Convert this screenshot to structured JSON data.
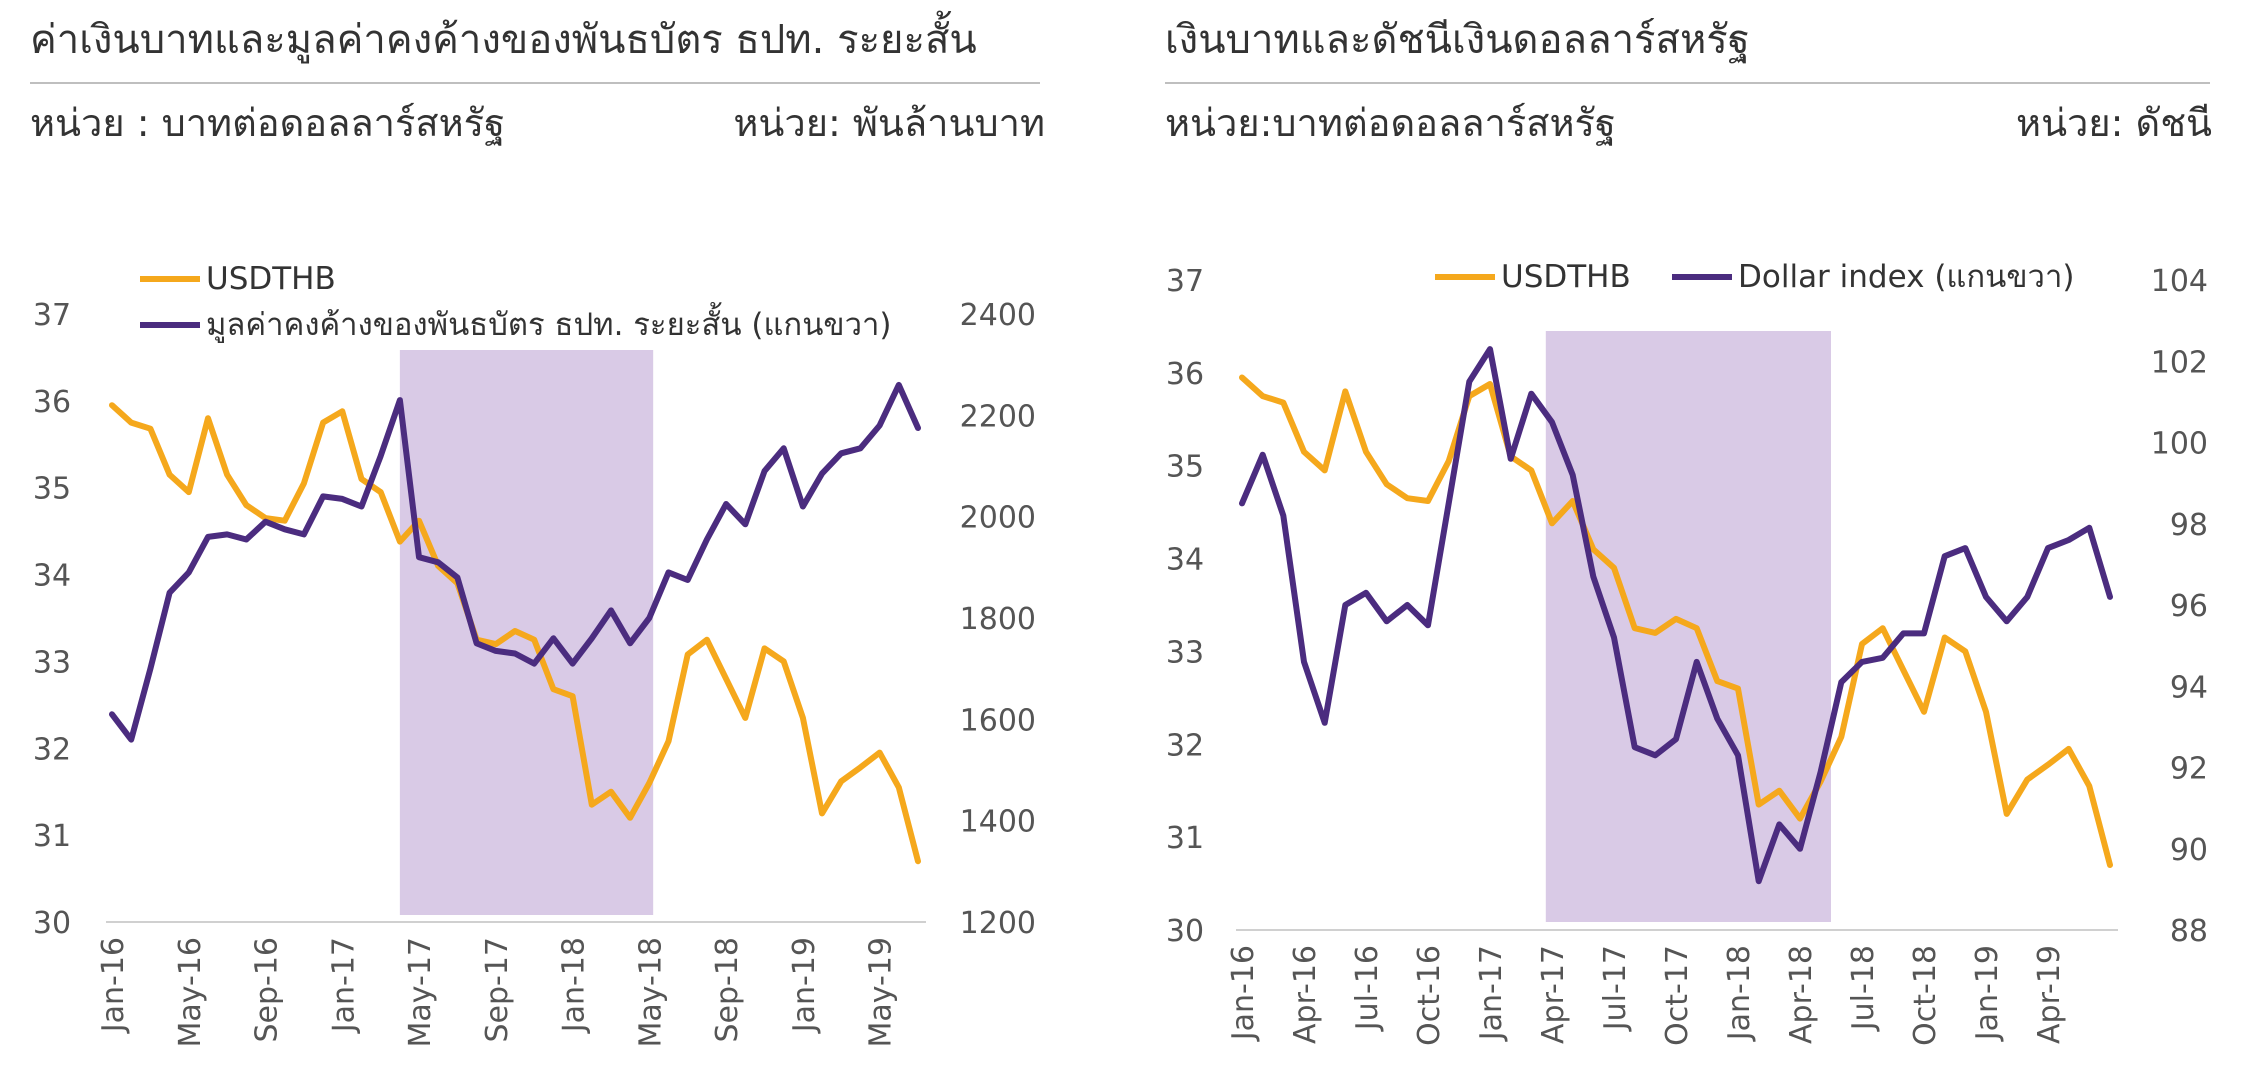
{
  "colors": {
    "usdthb": "#F5A81C",
    "purple": "#4B2C7F",
    "shade": "#D9CAE6",
    "rule": "#BFBFBF",
    "axis": "#D0D0D0"
  },
  "chart_data": [
    {
      "type": "line",
      "title": "ค่าเงินบาทและมูลค่าคงค้างของพันธบัตร ธปท. ระยะสั้น",
      "unit_left": "หน่วย : บาทต่อดอลลาร์สหรัฐ",
      "unit_right": "หน่วย: พันล้านบาท",
      "x_tick_labels": [
        "Jan-16",
        "May-16",
        "Sep-16",
        "Jan-17",
        "May-17",
        "Sep-17",
        "Jan-18",
        "May-18",
        "Sep-18",
        "Jan-19",
        "May-19"
      ],
      "x_tick_indices": [
        0,
        4,
        8,
        12,
        16,
        20,
        24,
        28,
        32,
        36,
        40
      ],
      "y_left": {
        "min": 30,
        "max": 37,
        "ticks": [
          30,
          31,
          32,
          33,
          34,
          35,
          36,
          37
        ]
      },
      "y_right": {
        "min": 1200,
        "max": 2400,
        "ticks": [
          1200,
          1400,
          1600,
          1800,
          2000,
          2200,
          2400
        ]
      },
      "shaded_range": [
        15,
        28.2
      ],
      "legend": [
        "USDTHB",
        "มูลค่าคงค้างของพันธบัตร ธปท. ระยะสั้น (แกนขวา)"
      ],
      "legend_position": "top-left",
      "series": [
        {
          "name": "USDTHB",
          "axis": "left",
          "values": [
            35.95,
            35.75,
            35.68,
            35.15,
            34.95,
            35.8,
            35.15,
            34.8,
            34.65,
            34.62,
            35.05,
            35.75,
            35.88,
            35.1,
            34.95,
            34.38,
            34.62,
            34.1,
            33.9,
            33.25,
            33.2,
            33.35,
            33.25,
            32.68,
            32.6,
            31.35,
            31.5,
            31.2,
            31.6,
            32.08,
            33.08,
            33.25,
            32.8,
            32.35,
            33.15,
            33.0,
            32.35,
            31.25,
            31.62,
            31.78,
            31.95,
            31.55,
            30.7
          ]
        },
        {
          "name": "มูลค่าคงค้างของพันธบัตร ธปท. ระยะสั้น (แกนขวา)",
          "axis": "right",
          "values": [
            1610,
            1560,
            1700,
            1850,
            1890,
            1960,
            1965,
            1955,
            1990,
            1975,
            1965,
            2040,
            2035,
            2020,
            2120,
            2230,
            1920,
            1910,
            1880,
            1750,
            1735,
            1730,
            1710,
            1760,
            1710,
            1760,
            1815,
            1750,
            1800,
            1890,
            1875,
            1955,
            2025,
            1985,
            2090,
            2135,
            2020,
            2085,
            2125,
            2135,
            2180,
            2260,
            2175
          ]
        }
      ]
    },
    {
      "type": "line",
      "title": "เงินบาทและดัชนีเงินดอลลาร์สหรัฐ",
      "unit_left": "หน่วย:บาทต่อดอลลาร์สหรัฐ",
      "unit_right": "หน่วย: ดัชนี",
      "x_tick_labels": [
        "Jan-16",
        "Apr-16",
        "Jul-16",
        "Oct-16",
        "Jan-17",
        "Apr-17",
        "Jul-17",
        "Oct-17",
        "Jan-18",
        "Apr-18",
        "Jul-18",
        "Oct-18",
        "Jan-19",
        "Apr-19"
      ],
      "x_tick_indices": [
        0,
        3,
        6,
        9,
        12,
        15,
        18,
        21,
        24,
        27,
        30,
        33,
        36,
        39
      ],
      "y_left": {
        "min": 30,
        "max": 37,
        "ticks": [
          30,
          31,
          32,
          33,
          34,
          35,
          36,
          37
        ]
      },
      "y_right": {
        "min": 88,
        "max": 104,
        "ticks": [
          88,
          90,
          92,
          94,
          96,
          98,
          100,
          102,
          104
        ]
      },
      "shaded_range": [
        14.7,
        28.5
      ],
      "legend": [
        "USDTHB",
        "Dollar index (แกนขวา)"
      ],
      "legend_position": "top-center",
      "series": [
        {
          "name": "USDTHB",
          "axis": "left",
          "values": [
            35.95,
            35.75,
            35.68,
            35.15,
            34.95,
            35.8,
            35.15,
            34.8,
            34.65,
            34.62,
            35.05,
            35.75,
            35.88,
            35.1,
            34.95,
            34.38,
            34.62,
            34.1,
            33.9,
            33.25,
            33.2,
            33.35,
            33.25,
            32.68,
            32.6,
            31.35,
            31.5,
            31.2,
            31.6,
            32.08,
            33.08,
            33.25,
            32.8,
            32.35,
            33.15,
            33.0,
            32.35,
            31.25,
            31.62,
            31.78,
            31.95,
            31.55,
            30.7
          ]
        },
        {
          "name": "Dollar index (แกนขวา)",
          "axis": "right",
          "values": [
            98.5,
            99.7,
            98.2,
            94.6,
            93.1,
            96.0,
            96.3,
            95.6,
            96.0,
            95.5,
            98.5,
            101.5,
            102.3,
            99.6,
            101.2,
            100.5,
            99.2,
            96.7,
            95.2,
            92.5,
            92.3,
            92.7,
            94.6,
            93.2,
            92.3,
            89.2,
            90.6,
            90.0,
            91.9,
            94.1,
            94.6,
            94.7,
            95.3,
            95.3,
            97.2,
            97.4,
            96.2,
            95.6,
            96.2,
            97.4,
            97.6,
            97.9,
            96.2
          ]
        }
      ]
    }
  ]
}
